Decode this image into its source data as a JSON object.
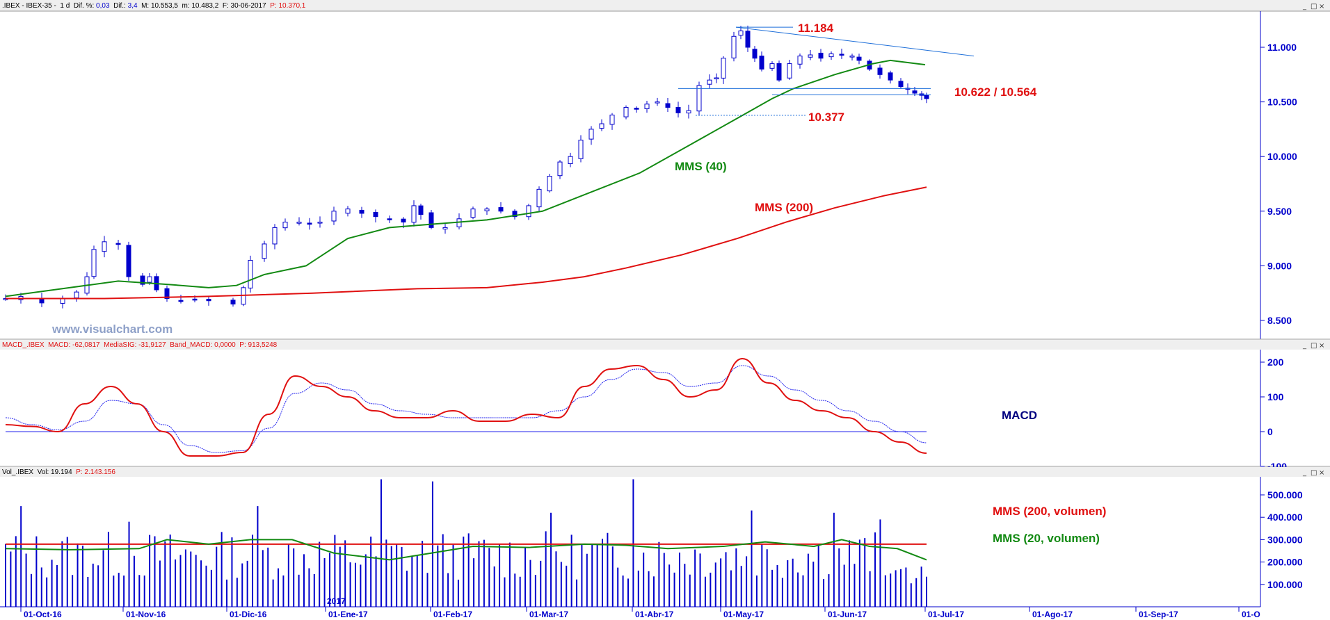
{
  "colors": {
    "candle": "#0000cc",
    "mms40": "#138a13",
    "mms200": "#e01010",
    "macd": "#e01010",
    "signal": "#2222ee",
    "volume": "#0000cc",
    "axis_text": "#0000cc",
    "annot_blue": "#000080",
    "watermark": "#8ea0c8"
  },
  "watermark": "www.visualchart.com",
  "price_panel": {
    "header": [
      {
        "t": ".IBEX - IBEX-35 -  1 d  Dif. %: ",
        "c": "#000000"
      },
      {
        "t": "0,03",
        "c": "#0000cc"
      },
      {
        "t": "  Dif.: ",
        "c": "#000000"
      },
      {
        "t": "3,4",
        "c": "#0000cc"
      },
      {
        "t": "  M: 10.553,5  m: 10.483,2  F: 30-06-2017  ",
        "c": "#000000"
      },
      {
        "t": "P: 10.370,1",
        "c": "#e01010"
      }
    ],
    "ticks": [
      "11.000",
      "10.500",
      "10.000",
      "9.500",
      "9.000",
      "8.500"
    ],
    "annotations": {
      "high": "11.184",
      "support": "10.622 / 10.564",
      "gap": "10.377",
      "mms40": "MMS (40)",
      "mms200": "MMS (200)"
    }
  },
  "macd_panel": {
    "header": [
      {
        "t": "MACD_.IBEX  MACD: -62,0817  MediaSIG: -31,9127  Band_MACD: 0,0000  ",
        "c": "#e01010"
      },
      {
        "t": "P: 913,5248",
        "c": "#e01010"
      }
    ],
    "ticks": [
      "200",
      "100",
      "0",
      "-100"
    ],
    "label": "MACD"
  },
  "volume_panel": {
    "header": [
      {
        "t": "Vol_.IBEX  Vol: 19.194  ",
        "c": "#000000"
      },
      {
        "t": "P: 2.143.156",
        "c": "#e01010"
      }
    ],
    "ticks": [
      "500.000",
      "400.000",
      "300.000",
      "200.000",
      "100.000"
    ],
    "label_mms200": "MMS (200, volumen)",
    "label_mms20": "MMS (20, volumen)"
  },
  "x_axis": {
    "dates": [
      "01-Oct-16",
      "01-Nov-16",
      "01-Dic-16",
      "01-Ene-17",
      "01-Feb-17",
      "01-Mar-17",
      "01-Abr-17",
      "01-May-17",
      "01-Jun-17",
      "01-Jul-17",
      "01-Ago-17",
      "01-Sep-17",
      "01-O"
    ],
    "year_marker": "2017"
  },
  "chart_data": {
    "type": "line",
    "title": "",
    "period": "daily",
    "price": {
      "ylim": [
        8300,
        11400
      ],
      "close_path": [
        [
          "01-Oct-16",
          8700
        ],
        [
          "10-Oct-16",
          8650
        ],
        [
          "20-Oct-16",
          8900
        ],
        [
          "27-Oct-16",
          9200
        ],
        [
          "01-Nov-16",
          8950
        ],
        [
          "10-Nov-16",
          8700
        ],
        [
          "20-Nov-16",
          8700
        ],
        [
          "25-Nov-16",
          8620
        ],
        [
          "01-Dic-16",
          8750
        ],
        [
          "05-Dic-16",
          9050
        ],
        [
          "15-Dic-16",
          9400
        ],
        [
          "22-Dic-16",
          9500
        ],
        [
          "01-Ene-17",
          9400
        ],
        [
          "15-Ene-17",
          9380
        ],
        [
          "23-Ene-17",
          9550
        ],
        [
          "01-Feb-17",
          9400
        ],
        [
          "10-Feb-17",
          9530
        ],
        [
          "20-Feb-17",
          9480
        ],
        [
          "01-Mar-17",
          9550
        ],
        [
          "10-Mar-17",
          9800
        ],
        [
          "20-Mar-17",
          10200
        ],
        [
          "01-Abr-17",
          10400
        ],
        [
          "10-Abr-17",
          10450
        ],
        [
          "20-Abr-17",
          10380
        ],
        [
          "25-Abr-17",
          10650
        ],
        [
          "01-May-17",
          10900
        ],
        [
          "05-May-17",
          11184
        ],
        [
          "12-May-17",
          10900
        ],
        [
          "20-May-17",
          10750
        ],
        [
          "01-Jun-17",
          10950
        ],
        [
          "10-Jun-17",
          10870
        ],
        [
          "20-Jun-17",
          10680
        ],
        [
          "30-Jun-17",
          10520
        ]
      ],
      "mms40": [
        [
          8720,
          8800,
          8860,
          8830,
          8800,
          8920,
          9250,
          9350,
          9380,
          9420,
          9650,
          10100,
          10500,
          10700,
          10880,
          10880
        ]
      ],
      "mms200": [
        [
          8700,
          8710,
          8740,
          8770,
          8800,
          8850,
          8950,
          9100,
          9300,
          9500,
          9720
        ]
      ],
      "levels": {
        "high": 11184,
        "support_upper": 10622,
        "support_lower": 10564,
        "gap": 10377
      }
    },
    "macd": {
      "ylim": [
        -100,
        200
      ],
      "zero_line": 0,
      "macd_points": [
        20,
        15,
        0,
        80,
        130,
        80,
        0,
        -70,
        -70,
        -60,
        50,
        160,
        130,
        100,
        60,
        40,
        40,
        60,
        30,
        30,
        50,
        40,
        130,
        180,
        190,
        150,
        100,
        120,
        210,
        140,
        90,
        60,
        40,
        0,
        -30,
        -62
      ],
      "signal_points": [
        40,
        20,
        5,
        30,
        90,
        80,
        20,
        -40,
        -60,
        -55,
        10,
        110,
        140,
        120,
        80,
        60,
        50,
        40,
        40,
        40,
        40,
        60,
        100,
        150,
        180,
        170,
        130,
        140,
        190,
        160,
        120,
        90,
        60,
        30,
        0,
        -32
      ]
    },
    "volume": {
      "ylim": [
        0,
        600000
      ],
      "mms200": 280000,
      "mms20_range": [
        200000,
        320000
      ],
      "peak": 570000
    }
  }
}
